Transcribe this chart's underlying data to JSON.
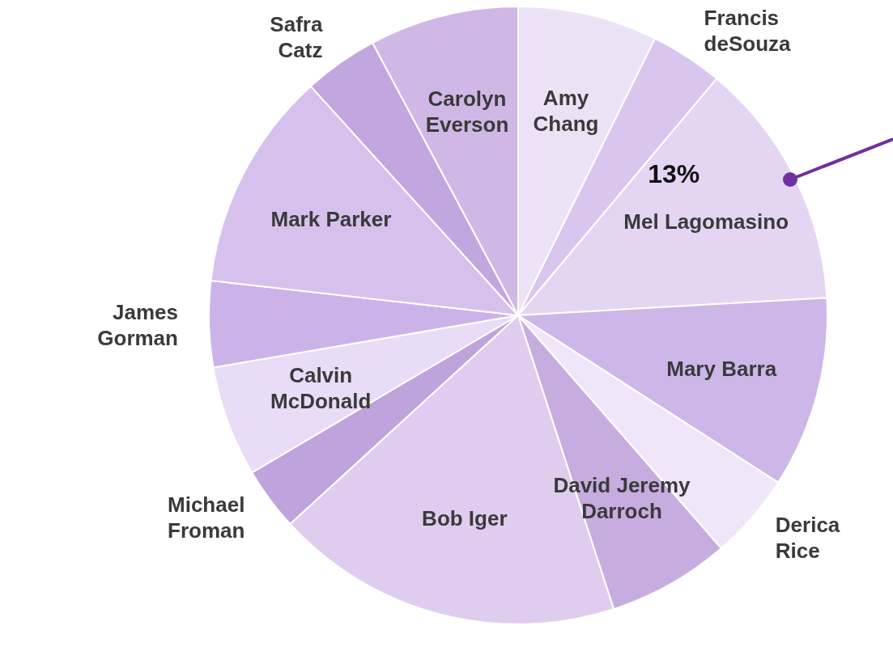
{
  "chart_data": {
    "type": "pie",
    "categories": [
      "Amy Chang",
      "Francis deSouza",
      "Mel Lagomasino",
      "Mary Barra",
      "Derica Rice",
      "David Jeremy Darroch",
      "Bob Iger",
      "Michael Froman",
      "Calvin McDonald",
      "James Gorman",
      "Mark Parker",
      "Safra Catz",
      "Carolyn Everson"
    ],
    "values": [
      7.3,
      3.8,
      13,
      10,
      4.5,
      6.4,
      18.2,
      3.3,
      5.8,
      4.5,
      11.5,
      3.9,
      7.8
    ],
    "value_labels": [
      null,
      null,
      "13%",
      null,
      null,
      null,
      null,
      null,
      null,
      null,
      null,
      null,
      null
    ],
    "colors": [
      "#ebe3f5",
      "#d9c6ee",
      "#e4d6f3",
      "#cdb6e8",
      "#f0e6fa",
      "#c7addf",
      "#dfcdf0",
      "#bfa3dc",
      "#e8dcf7",
      "#cbb3ea",
      "#d6c1ec",
      "#c2a6e0",
      "#d0b8e6"
    ]
  }
}
